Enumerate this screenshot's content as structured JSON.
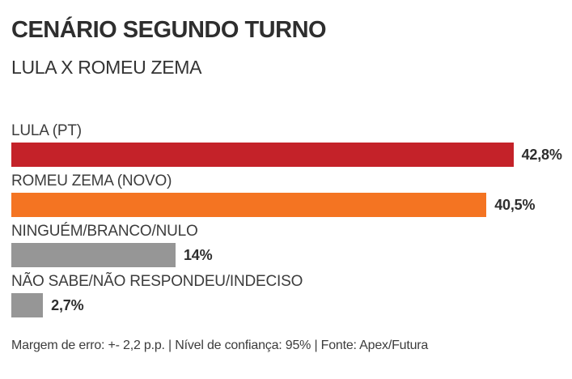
{
  "header": {
    "title": "CENÁRIO SEGUNDO TURNO",
    "subtitle": "LULA X ROMEU ZEMA"
  },
  "footer": {
    "text": "Margem de erro: +- 2,2 p.p. | Nível de confiança: 95% | Fonte: Apex/Futura",
    "margin_of_error": "+- 2,2 p.p.",
    "confidence_level": "95%",
    "source": "Apex/Futura"
  },
  "colors": {
    "lula_red": "#c42229",
    "zema_orange": "#f47422",
    "neutral_gray": "#969696",
    "text_dark": "#2e2e2e",
    "text_label": "#3c3c3c",
    "background": "#ffffff"
  },
  "chart_data": {
    "type": "bar",
    "orientation": "horizontal",
    "title": "CENÁRIO SEGUNDO TURNO",
    "subtitle": "LULA X ROMEU ZEMA",
    "categories": [
      "LULA (PT)",
      "ROMEU ZEMA (NOVO)",
      "NINGUÉM/BRANCO/NULO",
      "NÃO SABE/NÃO RESPONDEU/INDECISO"
    ],
    "values": [
      42.8,
      40.5,
      14,
      2.7
    ],
    "value_labels": [
      "42,8%",
      "40,5%",
      "14%",
      "2,7%"
    ],
    "bar_colors": [
      "#c42229",
      "#f47422",
      "#969696",
      "#969696"
    ],
    "unit": "%",
    "xlim": [
      0,
      45
    ],
    "grid": false,
    "legend": false,
    "value_label_position": "right-of-bar"
  }
}
